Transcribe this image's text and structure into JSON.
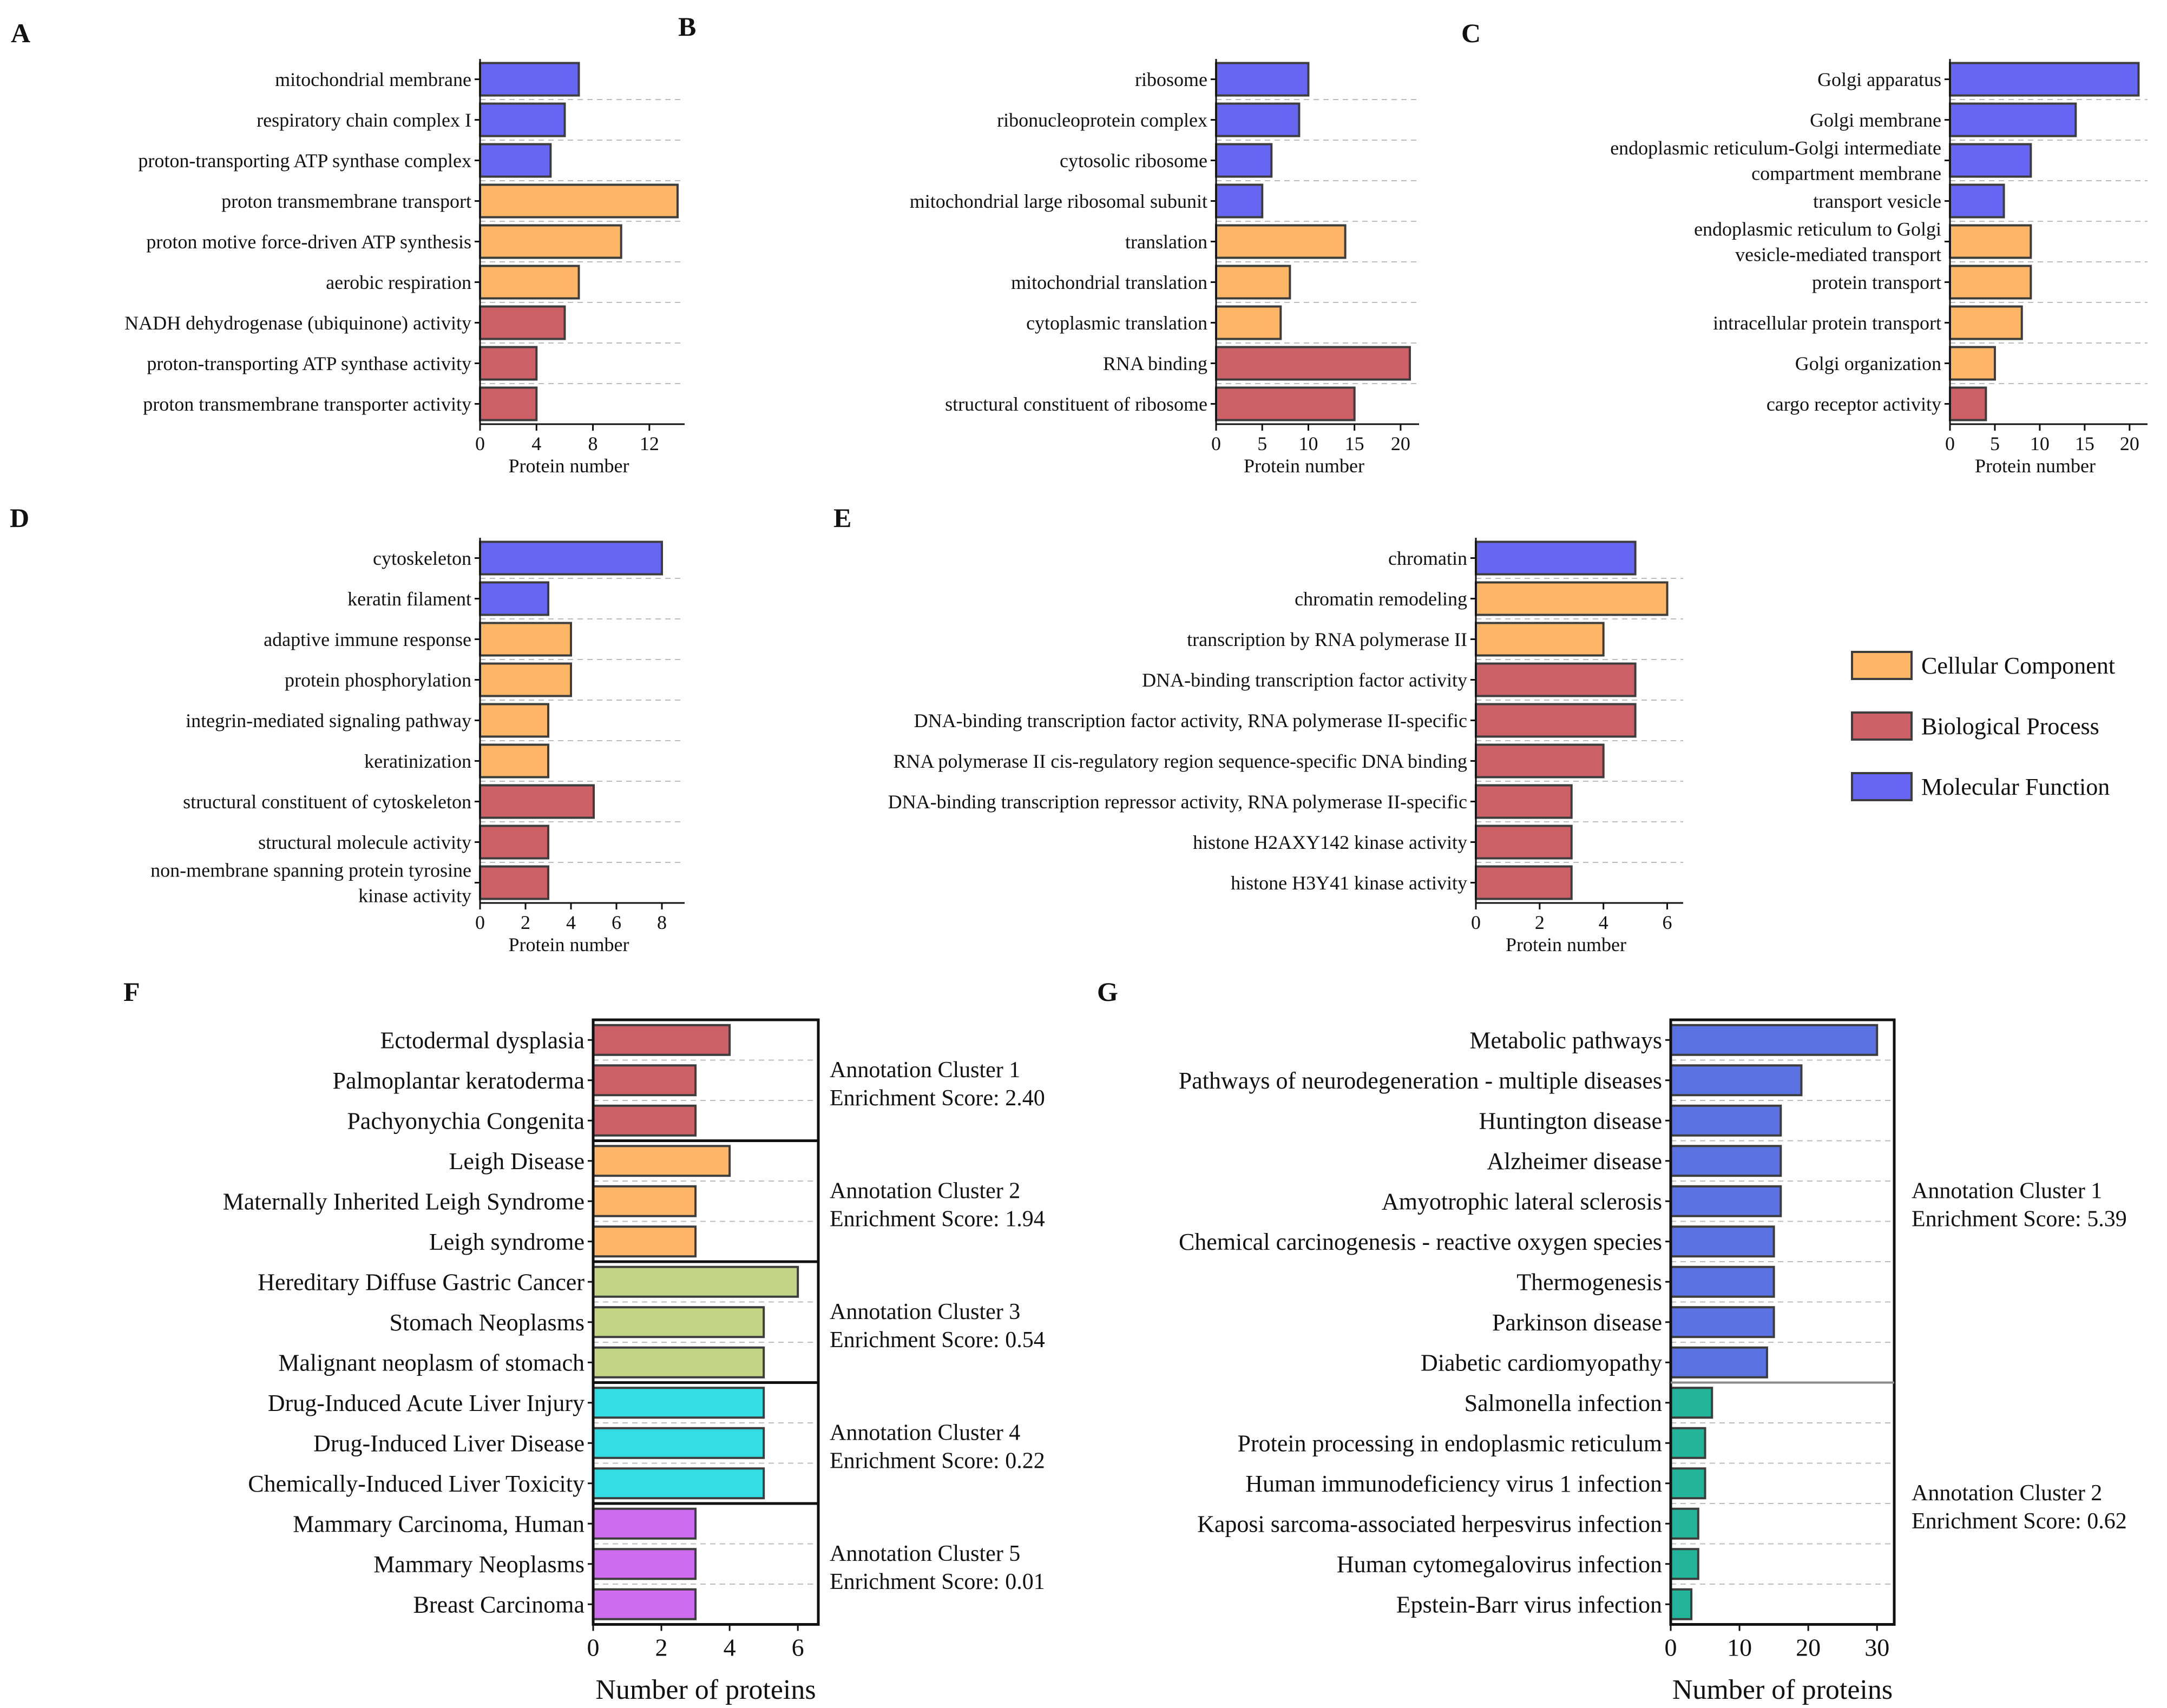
{
  "colors": {
    "molecular_function": "#6666f2",
    "cellular_component": "#fdb567",
    "biological_process": "#cc6066",
    "cluster3": "#c2d585",
    "cluster4": "#33dde3",
    "cluster5": "#ce6cf0",
    "kegg_cluster1": "#5b72e2",
    "kegg_cluster2": "#23b599",
    "bar_outline": "#3d3d3d"
  },
  "legend": {
    "items": [
      {
        "label": "Cellular Component",
        "color": "#fdb567"
      },
      {
        "label": "Biological Process",
        "color": "#cc6066"
      },
      {
        "label": "Molecular Function",
        "color": "#6666f2"
      }
    ]
  },
  "chart_data": [
    {
      "panel": "A",
      "type": "bar",
      "orientation": "horizontal",
      "xlabel": "Protein number",
      "xlim": [
        0,
        14.5
      ],
      "xticks": [
        0,
        4,
        8,
        12
      ],
      "categories": [
        "mitochondrial membrane",
        "respiratory chain complex I",
        "proton-transporting ATP synthase complex",
        "proton transmembrane transport",
        "proton motive force-driven ATP synthesis",
        "aerobic respiration",
        "NADH dehydrogenase (ubiquinone) activity",
        "proton-transporting ATP synthase activity",
        "proton transmembrane transporter activity"
      ],
      "values": [
        7,
        6,
        5,
        14,
        10,
        7,
        6,
        4,
        4
      ],
      "groups": [
        "molecular_function",
        "molecular_function",
        "molecular_function",
        "cellular_component",
        "cellular_component",
        "cellular_component",
        "biological_process",
        "biological_process",
        "biological_process"
      ]
    },
    {
      "panel": "B",
      "type": "bar",
      "orientation": "horizontal",
      "xlabel": "Protein number",
      "xlim": [
        0,
        22
      ],
      "xticks": [
        0,
        5,
        10,
        15,
        20
      ],
      "categories": [
        "ribosome",
        "ribonucleoprotein complex",
        "cytosolic ribosome",
        "mitochondrial large ribosomal subunit",
        "translation",
        "mitochondrial translation",
        "cytoplasmic translation",
        "RNA binding",
        "structural constituent of ribosome"
      ],
      "values": [
        10,
        9,
        6,
        5,
        14,
        8,
        7,
        21,
        15
      ],
      "groups": [
        "molecular_function",
        "molecular_function",
        "molecular_function",
        "molecular_function",
        "cellular_component",
        "cellular_component",
        "cellular_component",
        "biological_process",
        "biological_process"
      ]
    },
    {
      "panel": "C",
      "type": "bar",
      "orientation": "horizontal",
      "xlabel": "Protein number",
      "xlim": [
        0,
        22
      ],
      "xticks": [
        0,
        5,
        10,
        15,
        20
      ],
      "categories": [
        [
          "Golgi apparatus"
        ],
        [
          "Golgi membrane"
        ],
        [
          "endoplasmic reticulum-Golgi intermediate",
          "compartment membrane"
        ],
        [
          "transport vesicle"
        ],
        [
          "endoplasmic reticulum to Golgi",
          "vesicle-mediated transport"
        ],
        [
          "protein transport"
        ],
        [
          "intracellular protein transport"
        ],
        [
          "Golgi organization"
        ],
        [
          "cargo receptor activity"
        ]
      ],
      "values": [
        21,
        14,
        9,
        6,
        9,
        9,
        8,
        5,
        4
      ],
      "groups": [
        "molecular_function",
        "molecular_function",
        "molecular_function",
        "molecular_function",
        "cellular_component",
        "cellular_component",
        "cellular_component",
        "cellular_component",
        "biological_process"
      ]
    },
    {
      "panel": "D",
      "type": "bar",
      "orientation": "horizontal",
      "xlabel": "Protein number",
      "xlim": [
        0,
        9
      ],
      "xticks": [
        0,
        2,
        4,
        6,
        8
      ],
      "categories": [
        [
          "cytoskeleton"
        ],
        [
          "keratin filament"
        ],
        [
          "adaptive immune response"
        ],
        [
          "protein phosphorylation"
        ],
        [
          "integrin-mediated signaling pathway"
        ],
        [
          "keratinization"
        ],
        [
          "structural constituent of cytoskeleton"
        ],
        [
          "structural molecule activity"
        ],
        [
          "non-membrane spanning protein tyrosine",
          "kinase activity"
        ]
      ],
      "values": [
        8,
        3,
        4,
        4,
        3,
        3,
        5,
        3,
        3
      ],
      "groups": [
        "molecular_function",
        "molecular_function",
        "cellular_component",
        "cellular_component",
        "cellular_component",
        "cellular_component",
        "biological_process",
        "biological_process",
        "biological_process"
      ]
    },
    {
      "panel": "E",
      "type": "bar",
      "orientation": "horizontal",
      "xlabel": "Protein number",
      "xlim": [
        0,
        6.5
      ],
      "xticks": [
        0,
        2,
        4,
        6
      ],
      "categories": [
        "chromatin",
        "chromatin remodeling",
        "transcription by RNA polymerase II",
        "DNA-binding transcription factor activity",
        "DNA-binding transcription factor activity, RNA polymerase II-specific",
        "RNA polymerase II cis-regulatory region sequence-specific DNA binding",
        "DNA-binding transcription repressor activity, RNA polymerase II-specific",
        "histone H2AXY142 kinase activity",
        "histone H3Y41 kinase activity"
      ],
      "values": [
        5,
        6,
        4,
        5,
        5,
        4,
        3,
        3,
        3
      ],
      "groups": [
        "molecular_function",
        "cellular_component",
        "cellular_component",
        "biological_process",
        "biological_process",
        "biological_process",
        "biological_process",
        "biological_process",
        "biological_process"
      ]
    },
    {
      "panel": "F",
      "type": "bar",
      "orientation": "horizontal",
      "xlabel": "Number of proteins",
      "xlim": [
        0,
        6.6
      ],
      "xticks": [
        0,
        2,
        4,
        6
      ],
      "categories": [
        "Ectodermal dysplasia",
        "Palmoplantar keratoderma",
        "Pachyonychia Congenita",
        "Leigh Disease",
        "Maternally Inherited Leigh Syndrome",
        "Leigh syndrome",
        "Hereditary Diffuse Gastric Cancer",
        "Stomach Neoplasms",
        "Malignant neoplasm of stomach",
        "Drug-Induced Acute Liver Injury",
        "Drug-Induced Liver Disease",
        "Chemically-Induced Liver Toxicity",
        "Mammary Carcinoma, Human",
        "Mammary Neoplasms",
        "Breast Carcinoma"
      ],
      "values": [
        4,
        3,
        3,
        4,
        3,
        3,
        6,
        5,
        5,
        5,
        5,
        5,
        3,
        3,
        3
      ],
      "clusters": [
        {
          "name": "Annotation Cluster 1",
          "score": "Enrichment Score: 2.40",
          "count": 3,
          "color": "#cc6066"
        },
        {
          "name": "Annotation Cluster 2",
          "score": "Enrichment Score: 1.94",
          "count": 3,
          "color": "#fdb567"
        },
        {
          "name": "Annotation Cluster 3",
          "score": "Enrichment Score: 0.54",
          "count": 3,
          "color": "#c2d585"
        },
        {
          "name": "Annotation Cluster 4",
          "score": "Enrichment Score: 0.22",
          "count": 3,
          "color": "#33dde3"
        },
        {
          "name": "Annotation Cluster 5",
          "score": "Enrichment Score: 0.01",
          "count": 3,
          "color": "#ce6cf0"
        }
      ]
    },
    {
      "panel": "G",
      "type": "bar",
      "orientation": "horizontal",
      "xlabel": "Number of proteins",
      "xlim": [
        0,
        32.5
      ],
      "xticks": [
        0,
        10,
        20,
        30
      ],
      "categories": [
        "Metabolic pathways",
        "Pathways of neurodegeneration - multiple diseases",
        "Huntington disease",
        "Alzheimer disease",
        "Amyotrophic lateral sclerosis",
        "Chemical carcinogenesis - reactive oxygen species",
        "Thermogenesis",
        "Parkinson disease",
        "Diabetic cardiomyopathy",
        "Salmonella infection",
        "Protein processing in endoplasmic reticulum",
        "Human immunodeficiency virus 1 infection",
        "Kaposi sarcoma-associated herpesvirus infection",
        "Human cytomegalovirus infection",
        "Epstein-Barr virus infection"
      ],
      "values": [
        30,
        19,
        16,
        16,
        16,
        15,
        15,
        15,
        14,
        6,
        5,
        5,
        4,
        4,
        3
      ],
      "clusters": [
        {
          "name": "Annotation Cluster 1",
          "score": "Enrichment Score: 5.39",
          "count": 9,
          "color": "#5b72e2"
        },
        {
          "name": "Annotation Cluster 2",
          "score": "Enrichment Score: 0.62",
          "count": 6,
          "color": "#23b599"
        }
      ]
    }
  ]
}
